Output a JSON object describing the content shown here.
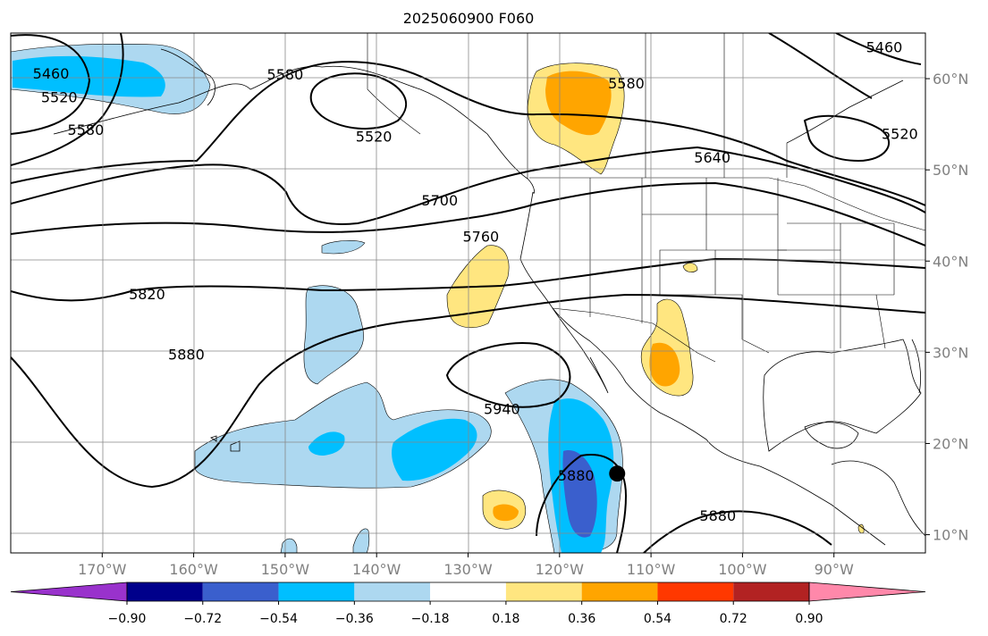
{
  "chart_data": {
    "type": "contour_map",
    "title": "2025060900 F060",
    "projection": "plate-carree",
    "xlim": [
      -180,
      -80
    ],
    "ylim": [
      8,
      65
    ],
    "grid": true,
    "x_ticks": [
      {
        "lon": -170,
        "label": "170°W"
      },
      {
        "lon": -160,
        "label": "160°W"
      },
      {
        "lon": -150,
        "label": "150°W"
      },
      {
        "lon": -140,
        "label": "140°W"
      },
      {
        "lon": -130,
        "label": "130°W"
      },
      {
        "lon": -120,
        "label": "120°W"
      },
      {
        "lon": -110,
        "label": "110°W"
      },
      {
        "lon": -100,
        "label": "100°W"
      },
      {
        "lon": -90,
        "label": "90°W"
      }
    ],
    "y_ticks": [
      {
        "lat": 60,
        "label": "60°N"
      },
      {
        "lat": 50,
        "label": "50°N"
      },
      {
        "lat": 40,
        "label": "40°N"
      },
      {
        "lat": 30,
        "label": "30°N"
      },
      {
        "lat": 20,
        "label": "20°N"
      },
      {
        "lat": 10,
        "label": "10°N"
      }
    ],
    "colorbar": {
      "location": "bottom",
      "extend": "both",
      "boundaries": [
        -0.9,
        -0.72,
        -0.54,
        -0.36,
        -0.18,
        0.18,
        0.36,
        0.54,
        0.72,
        0.9
      ],
      "tick_labels": [
        "−0.90",
        "−0.72",
        "−0.54",
        "−0.36",
        "−0.18",
        "0.18",
        "0.36",
        "0.54",
        "0.72",
        "0.90"
      ],
      "colors": [
        "#9932cc",
        "#00008b",
        "#3a5fcd",
        "#00bfff",
        "#add8f0",
        "#ffffff",
        "#ffe680",
        "#ffa500",
        "#ff3800",
        "#b22222",
        "#ff88aa"
      ]
    },
    "contour_labels": [
      {
        "text": "5460",
        "lon": -175.6,
        "lat": 60.6
      },
      {
        "text": "5520",
        "lon": -174.7,
        "lat": 58.0
      },
      {
        "text": "5580",
        "lon": -171.8,
        "lat": 54.4
      },
      {
        "text": "5580",
        "lon": -150.0,
        "lat": 60.5
      },
      {
        "text": "5520",
        "lon": -140.3,
        "lat": 53.7
      },
      {
        "text": "5580",
        "lon": -112.7,
        "lat": 59.5
      },
      {
        "text": "5460",
        "lon": -84.5,
        "lat": 63.5
      },
      {
        "text": "5520",
        "lon": -82.8,
        "lat": 54.0
      },
      {
        "text": "5640",
        "lon": -103.3,
        "lat": 51.4
      },
      {
        "text": "5700",
        "lon": -133.1,
        "lat": 46.7
      },
      {
        "text": "5760",
        "lon": -128.6,
        "lat": 42.7
      },
      {
        "text": "5820",
        "lon": -165.1,
        "lat": 36.4
      },
      {
        "text": "5880",
        "lon": -160.8,
        "lat": 29.8
      },
      {
        "text": "5940",
        "lon": -126.3,
        "lat": 23.8
      },
      {
        "text": "5880",
        "lon": -118.2,
        "lat": 16.5
      },
      {
        "text": "5880",
        "lon": -102.7,
        "lat": 12.1
      }
    ],
    "marker": {
      "lon": -113.7,
      "lat": 16.7
    }
  }
}
